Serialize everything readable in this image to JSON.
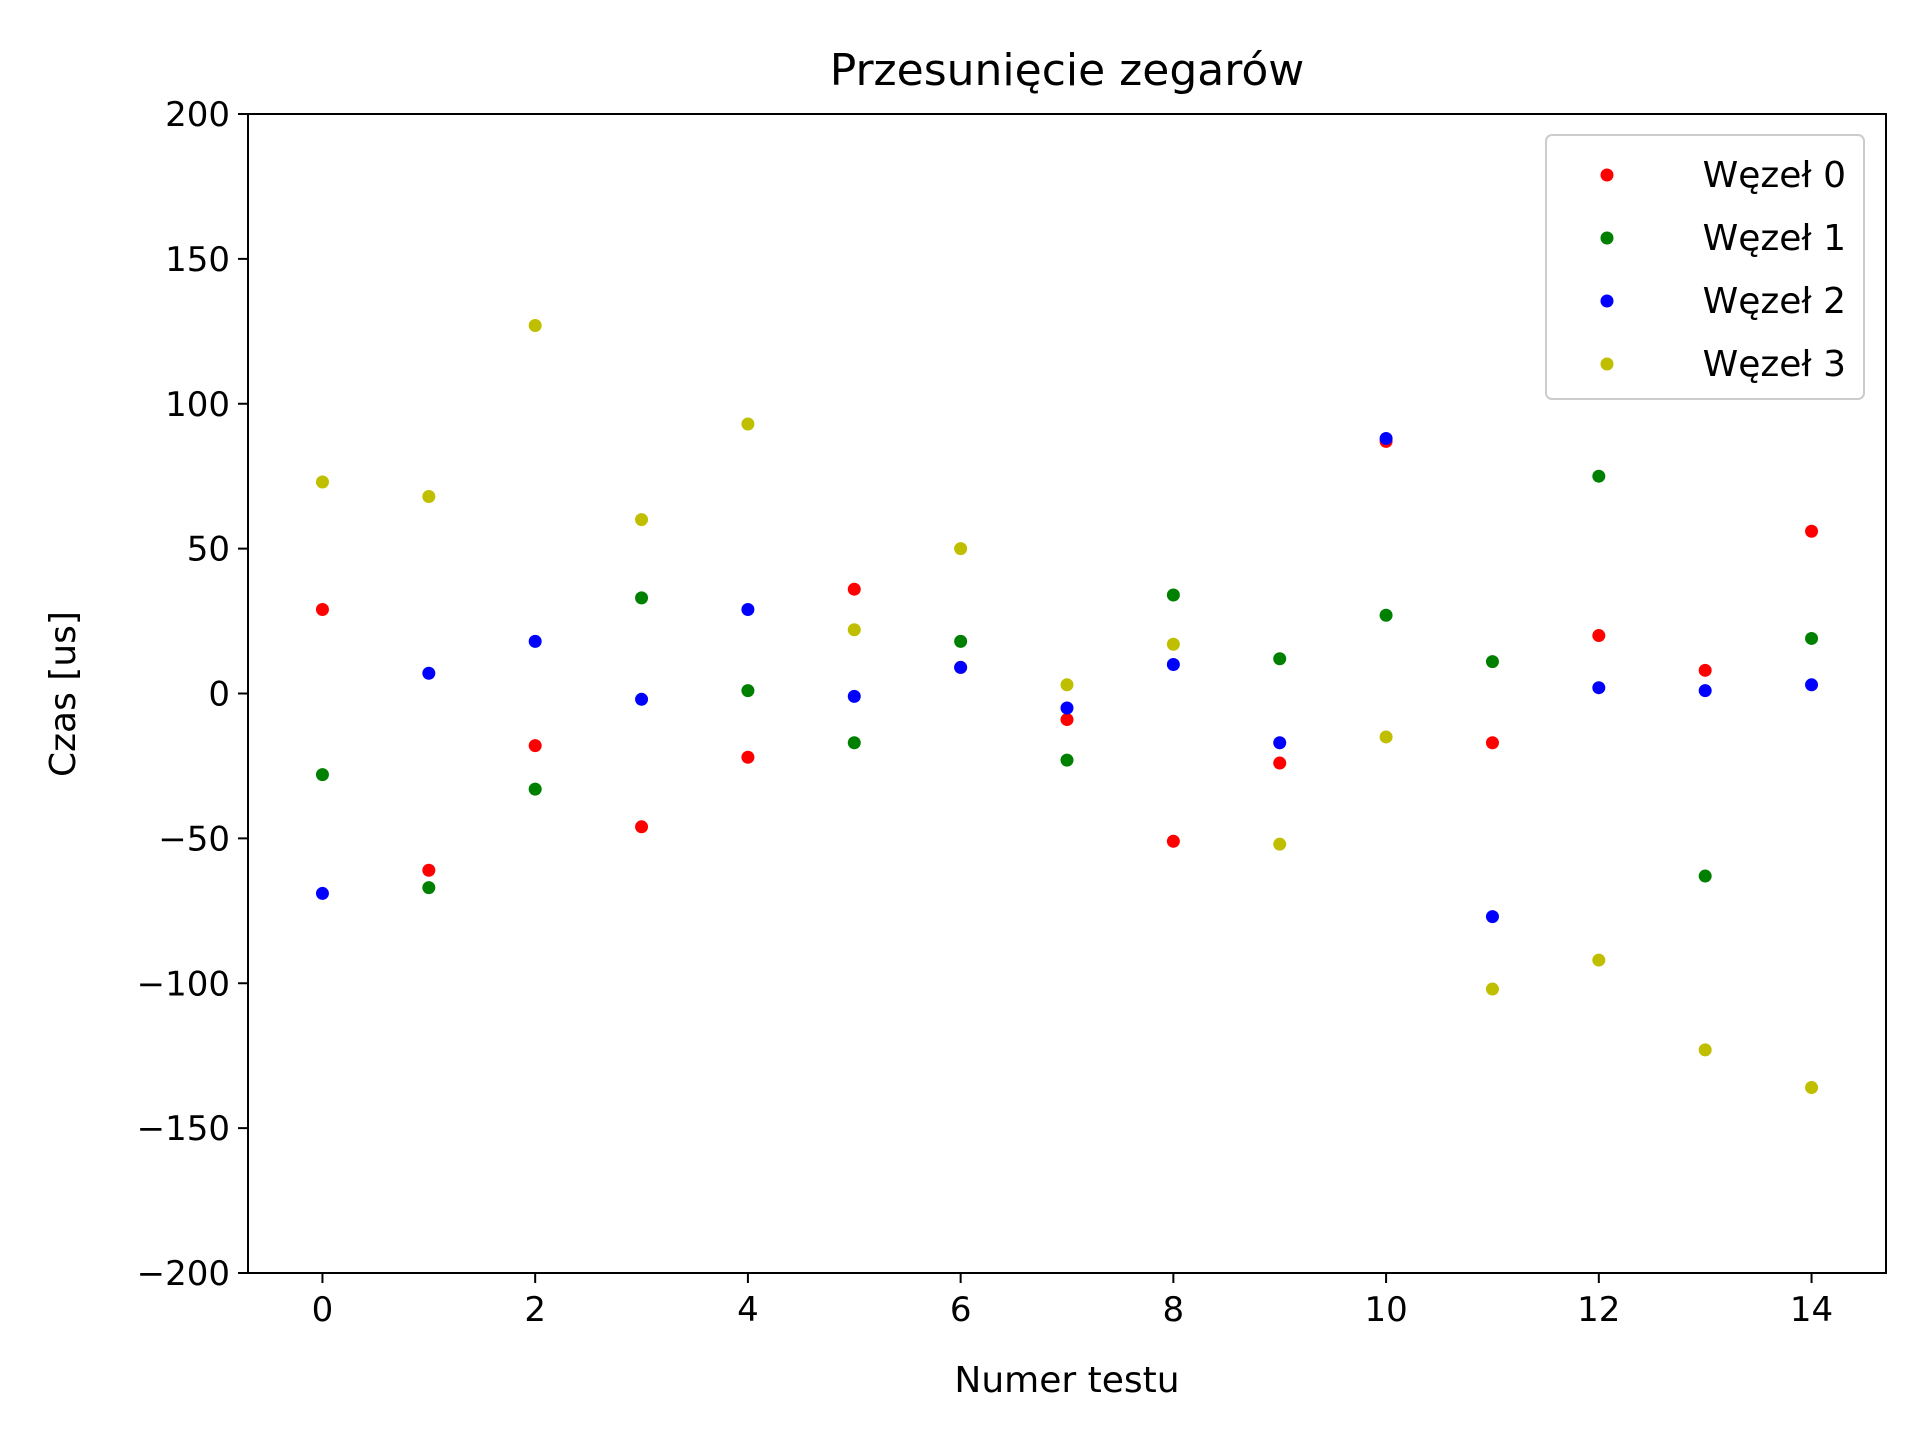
{
  "chart_data": {
    "type": "scatter",
    "title": "Przesunięcie zegarów",
    "xlabel": "Numer testu",
    "ylabel": "Czas [us]",
    "xlim": [
      -0.7,
      14.7
    ],
    "ylim": [
      -200,
      200
    ],
    "xticks": [
      0,
      2,
      4,
      6,
      8,
      10,
      12,
      14
    ],
    "xtick_labels": [
      "0",
      "2",
      "4",
      "6",
      "8",
      "10",
      "12",
      "14"
    ],
    "yticks": [
      200,
      150,
      100,
      50,
      0,
      -50,
      -100,
      -150,
      -200
    ],
    "ytick_labels": [
      "200",
      "150",
      "100",
      "50",
      "0",
      "−50",
      "−100",
      "−150",
      "−200"
    ],
    "legend_position": "top-right",
    "grid": false,
    "x": [
      0,
      1,
      2,
      3,
      4,
      5,
      6,
      7,
      8,
      9,
      10,
      11,
      12,
      13,
      14
    ],
    "series": [
      {
        "name": "Węzeł 0",
        "color": "#ff0000",
        "values": [
          29,
          -61,
          -18,
          -46,
          -22,
          36,
          9,
          -9,
          -51,
          -24,
          87,
          -17,
          20,
          8,
          56
        ]
      },
      {
        "name": "Węzeł 1",
        "color": "#008000",
        "values": [
          -28,
          -67,
          -33,
          33,
          1,
          -17,
          18,
          -23,
          34,
          12,
          27,
          11,
          75,
          -63,
          19
        ]
      },
      {
        "name": "Węzeł 2",
        "color": "#0000ff",
        "values": [
          -69,
          7,
          18,
          -2,
          29,
          -1,
          9,
          -5,
          10,
          -17,
          88,
          -77,
          2,
          1,
          3
        ]
      },
      {
        "name": "Węzeł 3",
        "color": "#bfbf00",
        "values": [
          73,
          68,
          127,
          60,
          93,
          22,
          50,
          3,
          17,
          -52,
          -15,
          -102,
          -92,
          -123,
          -136
        ]
      }
    ]
  }
}
